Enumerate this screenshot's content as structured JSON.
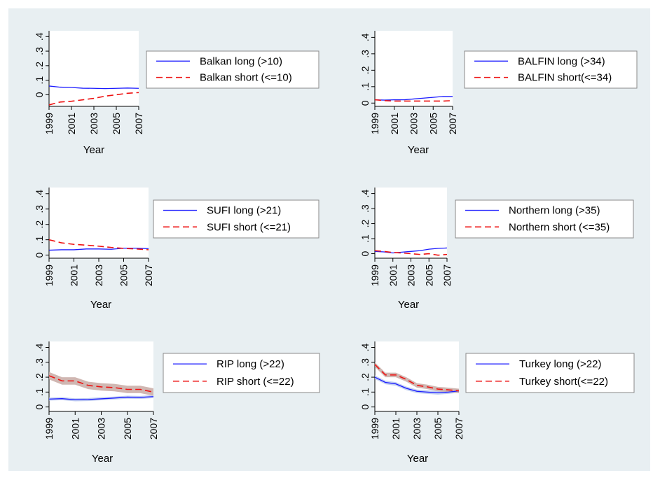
{
  "colors": {
    "background": "#e8eff2",
    "plot_background": "#ffffff",
    "long_line": "#1a1aff",
    "short_line": "#ee1111",
    "ci_long": "#b8c8ee",
    "ci_short": "#c8aaa4"
  },
  "chart_data": [
    {
      "type": "line",
      "xlabel": "Year",
      "x_ticks": [
        1999,
        2001,
        2003,
        2005,
        2007
      ],
      "y_ticks": [
        0,
        0.1,
        0.2,
        0.3,
        0.4
      ],
      "y_tick_labels": [
        "0",
        ".1",
        ".2",
        ".3",
        ".4"
      ],
      "xlim": [
        1999,
        2007
      ],
      "ylim": [
        -0.08,
        0.44
      ],
      "x": [
        1999,
        2000,
        2001,
        2002,
        2003,
        2004,
        2005,
        2006,
        2007
      ],
      "legend_position": "right",
      "series": [
        {
          "name": "Balkan long (>10)",
          "style": "solid",
          "values": [
            0.06,
            0.052,
            0.05,
            0.045,
            0.044,
            0.042,
            0.044,
            0.046,
            0.044
          ]
        },
        {
          "name": "Balkan short (<=10)",
          "style": "dashed",
          "values": [
            -0.07,
            -0.05,
            -0.045,
            -0.035,
            -0.025,
            -0.01,
            0.0,
            0.01,
            0.015
          ]
        }
      ]
    },
    {
      "type": "line",
      "xlabel": "Year",
      "x_ticks": [
        1999,
        2001,
        2003,
        2005,
        2007
      ],
      "y_ticks": [
        0,
        0.1,
        0.2,
        0.3,
        0.4
      ],
      "y_tick_labels": [
        "0",
        ".1",
        ".2",
        ".3",
        ".4"
      ],
      "xlim": [
        1999,
        2007
      ],
      "ylim": [
        -0.02,
        0.44
      ],
      "x": [
        1999,
        2000,
        2001,
        2002,
        2003,
        2004,
        2005,
        2006,
        2007
      ],
      "legend_position": "right",
      "series": [
        {
          "name": "BALFIN long (>34)",
          "style": "solid",
          "values": [
            0.02,
            0.018,
            0.02,
            0.02,
            0.025,
            0.03,
            0.035,
            0.04,
            0.04
          ]
        },
        {
          "name": "BALFIN short(<=34)",
          "style": "dashed",
          "values": [
            0.02,
            0.015,
            0.012,
            0.012,
            0.012,
            0.012,
            0.012,
            0.012,
            0.015
          ]
        }
      ]
    },
    {
      "type": "line",
      "xlabel": "Year",
      "x_ticks": [
        1999,
        2001,
        2003,
        2005,
        2007
      ],
      "y_ticks": [
        0,
        0.1,
        0.2,
        0.3,
        0.4
      ],
      "y_tick_labels": [
        "0",
        ".1",
        ".2",
        ".3",
        ".4"
      ],
      "xlim": [
        1999,
        2007
      ],
      "ylim": [
        -0.02,
        0.44
      ],
      "x": [
        1999,
        2000,
        2001,
        2002,
        2003,
        2004,
        2005,
        2006,
        2007
      ],
      "legend_position": "right",
      "series": [
        {
          "name": "SUFI long (>21)",
          "style": "solid",
          "values": [
            0.032,
            0.035,
            0.035,
            0.04,
            0.04,
            0.038,
            0.045,
            0.045,
            0.042
          ]
        },
        {
          "name": "SUFI short (<=21)",
          "style": "dashed",
          "values": [
            0.1,
            0.08,
            0.07,
            0.065,
            0.058,
            0.05,
            0.044,
            0.04,
            0.035
          ]
        }
      ]
    },
    {
      "type": "line",
      "xlabel": "Year",
      "x_ticks": [
        1999,
        2001,
        2003,
        2005,
        2007
      ],
      "y_ticks": [
        0,
        0.1,
        0.2,
        0.3,
        0.4
      ],
      "y_tick_labels": [
        "0",
        ".1",
        ".2",
        ".3",
        ".4"
      ],
      "xlim": [
        1999,
        2007
      ],
      "ylim": [
        -0.03,
        0.44
      ],
      "x": [
        1999,
        2000,
        2001,
        2002,
        2003,
        2004,
        2005,
        2006,
        2007
      ],
      "legend_position": "right",
      "series": [
        {
          "name": "Northern long (>35)",
          "style": "solid",
          "values": [
            0.015,
            0.012,
            0.005,
            0.01,
            0.015,
            0.02,
            0.03,
            0.035,
            0.038
          ]
        },
        {
          "name": "Northern short (<=35)",
          "style": "dashed",
          "values": [
            0.02,
            0.015,
            0.008,
            0.005,
            0.0,
            -0.005,
            0.0,
            -0.01,
            -0.005
          ]
        }
      ]
    },
    {
      "type": "line",
      "xlabel": "Year",
      "x_ticks": [
        1999,
        2001,
        2003,
        2005,
        2007
      ],
      "y_ticks": [
        0,
        0.1,
        0.2,
        0.3,
        0.4
      ],
      "y_tick_labels": [
        "0",
        ".1",
        ".2",
        ".3",
        ".4"
      ],
      "xlim": [
        1999,
        2007
      ],
      "ylim": [
        -0.03,
        0.44
      ],
      "x": [
        1999,
        2000,
        2001,
        2002,
        2003,
        2004,
        2005,
        2006,
        2007
      ],
      "legend_position": "right",
      "series": [
        {
          "name": "RIP long (>22)",
          "style": "solid",
          "values": [
            0.053,
            0.056,
            0.048,
            0.05,
            0.055,
            0.06,
            0.066,
            0.064,
            0.07
          ],
          "ci": 0.01
        },
        {
          "name": "RIP short (<=22)",
          "style": "dashed",
          "values": [
            0.21,
            0.175,
            0.175,
            0.145,
            0.135,
            0.13,
            0.118,
            0.118,
            0.1
          ],
          "ci": 0.025
        }
      ]
    },
    {
      "type": "line",
      "xlabel": "Year",
      "x_ticks": [
        1999,
        2001,
        2003,
        2005,
        2007
      ],
      "y_ticks": [
        0,
        0.1,
        0.2,
        0.3,
        0.4
      ],
      "y_tick_labels": [
        "0",
        ".1",
        ".2",
        ".3",
        ".4"
      ],
      "xlim": [
        1999,
        2007
      ],
      "ylim": [
        -0.03,
        0.44
      ],
      "x": [
        1999,
        2000,
        2001,
        2002,
        2003,
        2004,
        2005,
        2006,
        2007
      ],
      "legend_position": "right",
      "series": [
        {
          "name": "Turkey long (>22)",
          "style": "solid",
          "values": [
            0.2,
            0.165,
            0.155,
            0.125,
            0.105,
            0.1,
            0.095,
            0.1,
            0.108
          ],
          "ci": 0.012
        },
        {
          "name": "Turkey short(<=22)",
          "style": "dashed",
          "values": [
            0.285,
            0.215,
            0.215,
            0.185,
            0.145,
            0.135,
            0.12,
            0.115,
            0.108
          ],
          "ci": 0.015
        }
      ]
    }
  ]
}
